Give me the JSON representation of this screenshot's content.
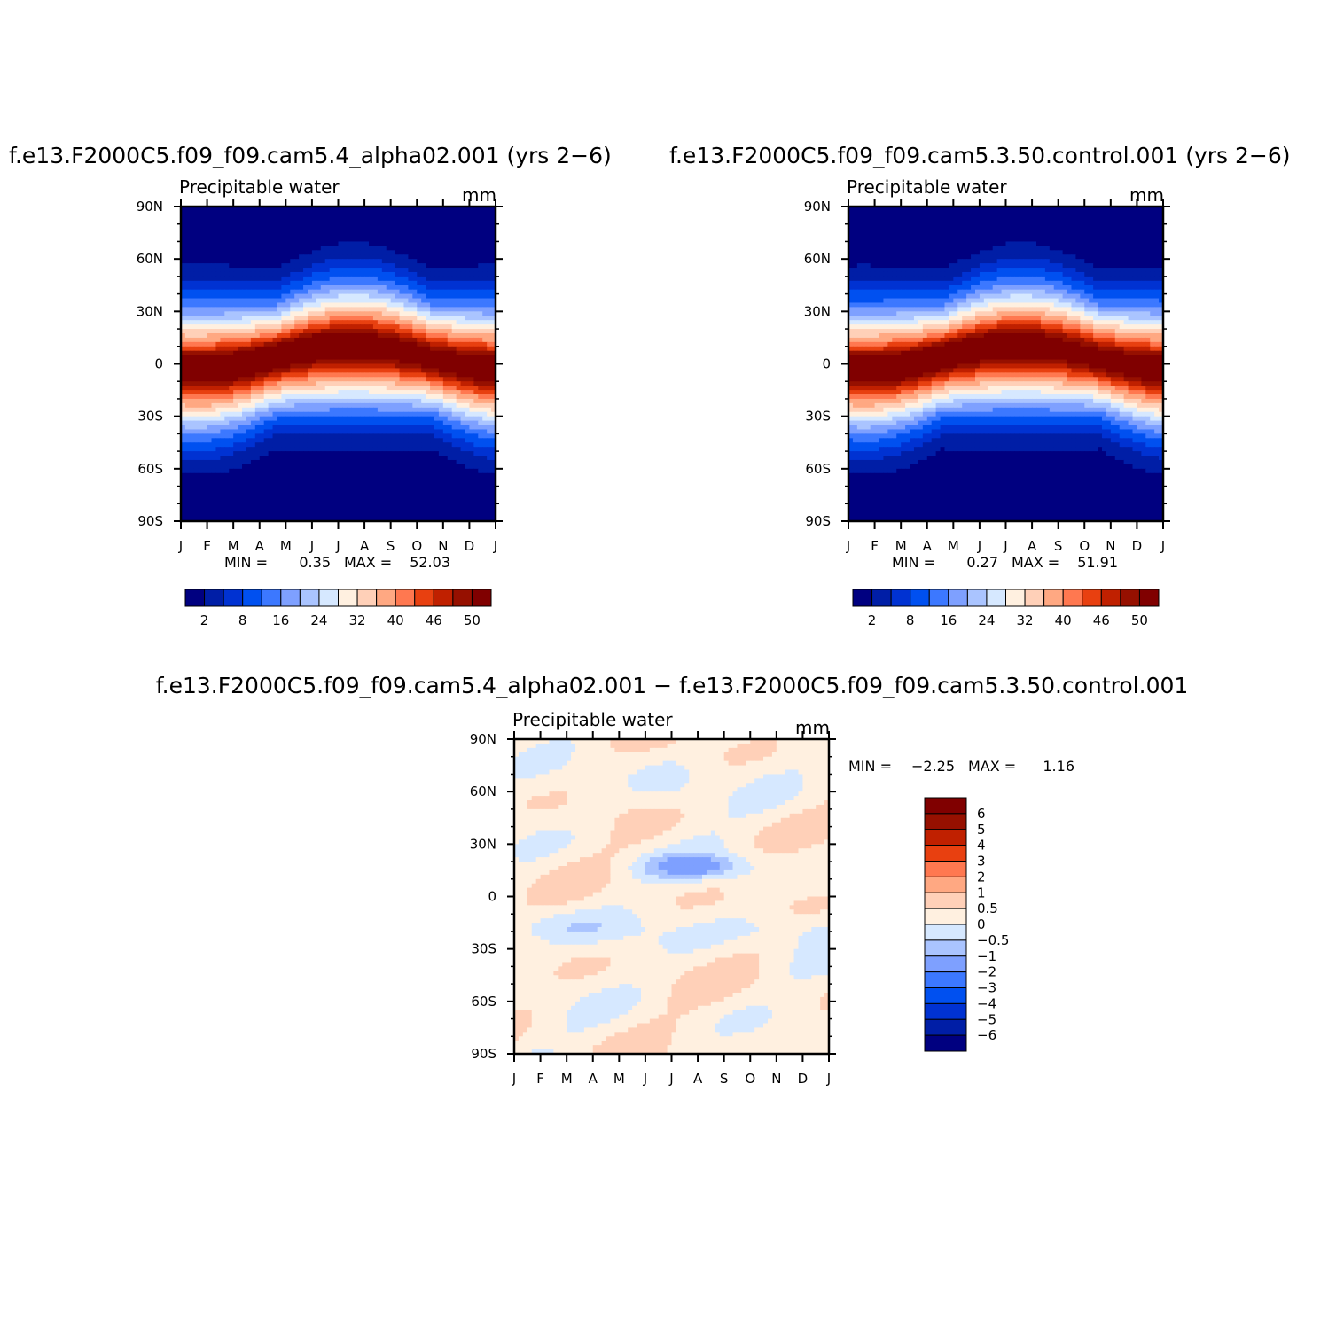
{
  "figure": {
    "top_left_title": "f.e13.F2000C5.f09_f09.cam5.4_alpha02.001 (yrs 2−6)",
    "top_right_title": "f.e13.F2000C5.f09_f09.cam5.3.50.control.001 (yrs 2−6)",
    "bottom_title": "f.e13.F2000C5.f09_f09.cam5.4_alpha02.001 − f.e13.F2000C5.f09_f09.cam5.3.50.control.001"
  },
  "chart_data": [
    {
      "type": "heatmap",
      "variable": "Precipitable water",
      "units": "mm",
      "x_ticks": [
        "J",
        "F",
        "M",
        "A",
        "M",
        "J",
        "J",
        "A",
        "S",
        "O",
        "N",
        "D",
        "J"
      ],
      "y_ticks": [
        "90N",
        "60N",
        "30N",
        "0",
        "30S",
        "60S",
        "90S"
      ],
      "ylim": [
        -90,
        90
      ],
      "min_label": "MIN =",
      "max_label": "MAX =",
      "min": "0.35",
      "max": "52.03",
      "summary": {
        "eq_peak": 52.03,
        "polar_min": 0.35
      },
      "colorbar": {
        "orientation": "horizontal",
        "colors": [
          "#000080",
          "#001ea6",
          "#0032d2",
          "#0050f0",
          "#3c78ff",
          "#7ea0ff",
          "#aac4ff",
          "#d6e8ff",
          "#fff0e0",
          "#ffd0b8",
          "#ffa882",
          "#ff7850",
          "#e84010",
          "#c02000",
          "#961000",
          "#800000"
        ],
        "tick_labels": [
          "2",
          "8",
          "16",
          "24",
          "32",
          "40",
          "46",
          "50"
        ]
      }
    },
    {
      "type": "heatmap",
      "variable": "Precipitable water",
      "units": "mm",
      "x_ticks": [
        "J",
        "F",
        "M",
        "A",
        "M",
        "J",
        "J",
        "A",
        "S",
        "O",
        "N",
        "D",
        "J"
      ],
      "y_ticks": [
        "90N",
        "60N",
        "30N",
        "0",
        "30S",
        "60S",
        "90S"
      ],
      "ylim": [
        -90,
        90
      ],
      "min_label": "MIN =",
      "max_label": "MAX =",
      "min": "0.27",
      "max": "51.91",
      "summary": {
        "eq_peak": 51.91,
        "polar_min": 0.27
      },
      "colorbar": {
        "orientation": "horizontal",
        "colors": [
          "#000080",
          "#001ea6",
          "#0032d2",
          "#0050f0",
          "#3c78ff",
          "#7ea0ff",
          "#aac4ff",
          "#d6e8ff",
          "#fff0e0",
          "#ffd0b8",
          "#ffa882",
          "#ff7850",
          "#e84010",
          "#c02000",
          "#961000",
          "#800000"
        ],
        "tick_labels": [
          "2",
          "8",
          "16",
          "24",
          "32",
          "40",
          "46",
          "50"
        ]
      }
    },
    {
      "type": "heatmap",
      "variable": "Precipitable water",
      "units": "mm",
      "x_ticks": [
        "J",
        "F",
        "M",
        "A",
        "M",
        "J",
        "J",
        "A",
        "S",
        "O",
        "N",
        "D",
        "J"
      ],
      "y_ticks": [
        "90N",
        "60N",
        "30N",
        "0",
        "30S",
        "60S",
        "90S"
      ],
      "ylim": [
        -90,
        90
      ],
      "min_label": "MIN =",
      "max_label": "MAX =",
      "min": "−2.25",
      "max": "1.16",
      "colorbar": {
        "orientation": "vertical",
        "colors": [
          "#000080",
          "#001ea6",
          "#0032d2",
          "#0050f0",
          "#3c78ff",
          "#7ea0ff",
          "#aac4ff",
          "#d6e8ff",
          "#fff0e0",
          "#ffd0b8",
          "#ffa882",
          "#ff7850",
          "#e84010",
          "#c02000",
          "#961000",
          "#800000"
        ],
        "tick_labels": [
          "6",
          "5",
          "4",
          "3",
          "2",
          "1",
          "0.5",
          "0",
          "−0.5",
          "−1",
          "−2",
          "−3",
          "−4",
          "−5",
          "−6"
        ]
      }
    }
  ]
}
